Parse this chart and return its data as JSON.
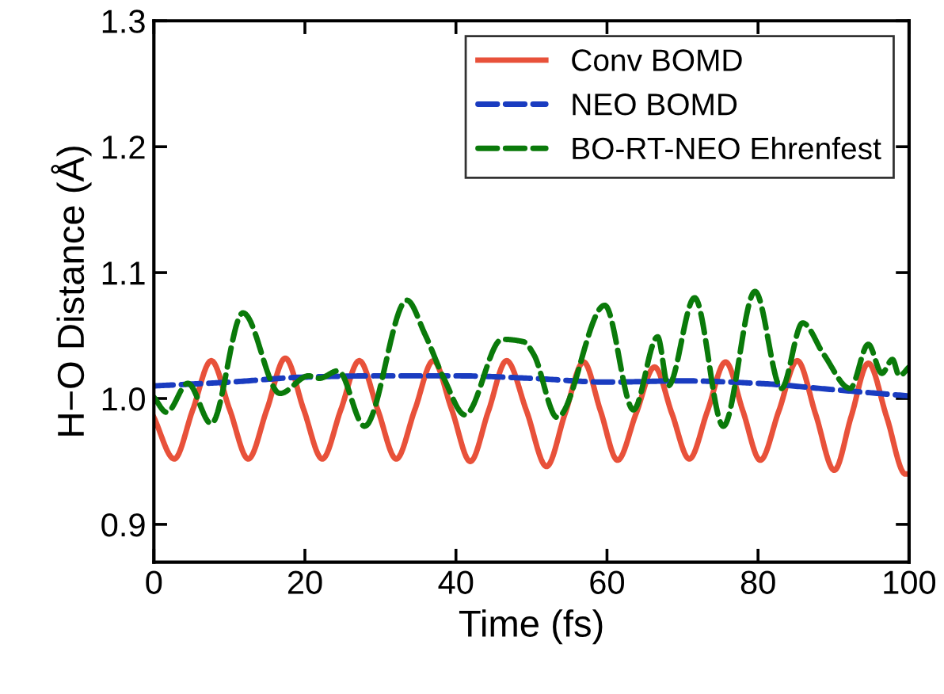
{
  "chart_data": {
    "type": "line",
    "xlabel": "Time (fs)",
    "ylabel": "H−O Distance (Å)",
    "xlim": [
      0,
      100
    ],
    "ylim": [
      0.87,
      1.3
    ],
    "xticks": [
      0,
      20,
      40,
      60,
      80,
      100
    ],
    "yticks": [
      0.9,
      {
        "value": 1.0,
        "label": "1.0"
      },
      1.1,
      1.2,
      1.3
    ],
    "grid": false,
    "legend": "top right",
    "marker": "none",
    "series": [
      {
        "name": "Conv BOMD",
        "color": "#e8513a",
        "line_style": "solid",
        "x": [
          0,
          2.7,
          5.15,
          7.6,
          10.05,
          12.5,
          14.95,
          17.4,
          19.85,
          22.3,
          24.75,
          27.2,
          29.65,
          32.1,
          34.55,
          37.0,
          39.45,
          41.9,
          44.3,
          46.7,
          49.35,
          52.0,
          54.45,
          56.9,
          59.15,
          61.4,
          63.85,
          66.3,
          68.6,
          70.9,
          73.3,
          75.7,
          78.0,
          80.3,
          82.75,
          85.2,
          87.65,
          90.1,
          92.35,
          94.6,
          97.05,
          99.5,
          100
        ],
        "values": [
          0.985,
          0.952,
          0.991,
          1.03,
          0.991,
          0.952,
          0.991,
          1.032,
          0.991,
          0.952,
          0.991,
          1.03,
          0.991,
          0.952,
          0.991,
          1.03,
          0.991,
          0.95,
          0.99,
          1.03,
          0.99,
          0.946,
          0.988,
          1.029,
          0.99,
          0.951,
          0.988,
          1.025,
          0.988,
          0.952,
          0.99,
          1.029,
          0.99,
          0.951,
          0.99,
          1.03,
          0.987,
          0.943,
          0.986,
          1.028,
          0.985,
          0.94,
          0.94
        ]
      },
      {
        "name": "NEO BOMD",
        "color": "#1a3cc0",
        "line_style": "dashed",
        "x": [
          0,
          10,
          20,
          30,
          40,
          50,
          60,
          70,
          80,
          90,
          100
        ],
        "values": [
          1.01,
          1.013,
          1.017,
          1.018,
          1.018,
          1.016,
          1.013,
          1.014,
          1.012,
          1.007,
          1.002
        ]
      },
      {
        "name": "BO-RT-NEO Ehrenfest",
        "color": "#0a7a0a",
        "line_style": "dashed",
        "x": [
          0,
          1.7,
          4.5,
          7.6,
          11.8,
          16.7,
          20.5,
          21.9,
          24.4,
          27.9,
          33.5,
          35.9,
          38.4,
          41.2,
          46.1,
          49.0,
          50.3,
          53.4,
          59.7,
          63.5,
          66.7,
          68.1,
          71.6,
          75.4,
          79.6,
          83.1,
          85.9,
          88.7,
          92.2,
          94.6,
          96.4,
          97.8,
          98.7,
          100
        ],
        "values": [
          1.001,
          0.989,
          1.012,
          0.98,
          1.068,
          1.004,
          1.018,
          1.016,
          1.022,
          0.978,
          1.078,
          1.051,
          1.016,
          0.987,
          1.047,
          1.045,
          1.035,
          0.985,
          1.074,
          0.991,
          1.049,
          1.01,
          1.08,
          0.978,
          1.085,
          1.008,
          1.06,
          1.035,
          1.008,
          1.043,
          1.02,
          1.031,
          1.018,
          1.025
        ]
      }
    ]
  }
}
